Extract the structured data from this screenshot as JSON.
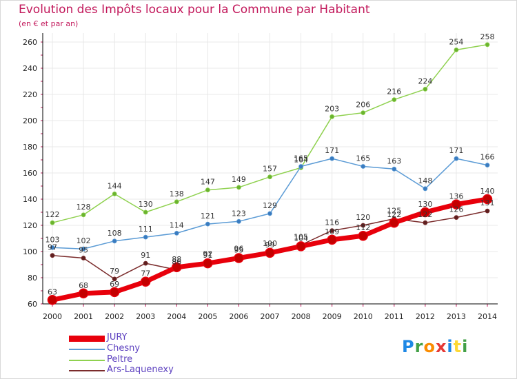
{
  "title": "Evolution des Impôts locaux pour la Commune par Habitant",
  "subtitle": "(en € et par an)",
  "logo": {
    "letters": [
      "P",
      "r",
      "o",
      "x",
      "i",
      "t",
      "i"
    ],
    "colors": [
      "#1e88e5",
      "#43a047",
      "#fb8c00",
      "#e53935",
      "#1e88e5",
      "#fdd835",
      "#43a047"
    ]
  },
  "colors": {
    "background": "#ffffff",
    "axis": "#000000",
    "grid": "#e8e8e8",
    "tick_marks": "#c2185b",
    "title": "#c2185b"
  },
  "chart_data": {
    "type": "line",
    "title": "Evolution des Impôts locaux pour la Commune par Habitant",
    "subtitle": "(en € et par an)",
    "x": [
      2000,
      2001,
      2002,
      2003,
      2004,
      2005,
      2006,
      2007,
      2008,
      2009,
      2010,
      2011,
      2012,
      2013,
      2014
    ],
    "ylim": [
      60,
      260
    ],
    "yticks": [
      60,
      80,
      100,
      120,
      140,
      160,
      180,
      200,
      220,
      240,
      260
    ],
    "grid": true,
    "legend_position": "bottom-left",
    "series": [
      {
        "name": "JURY",
        "color": "#e8000b",
        "marker_color": "#c40000",
        "values": [
          63,
          68,
          69,
          77,
          88,
          91,
          95,
          99,
          104,
          109,
          112,
          122,
          130,
          136,
          140
        ],
        "labels": [
          "63",
          "68",
          "69",
          "77",
          "88",
          "91",
          "95",
          "99",
          "104",
          "109",
          "112",
          "122",
          "130",
          "136",
          "140"
        ]
      },
      {
        "name": "Chesny",
        "color": "#5b9bd5",
        "marker_color": "#3a7bbf",
        "values": [
          103,
          102,
          108,
          111,
          114,
          121,
          123,
          129,
          165,
          171,
          165,
          163,
          148,
          171,
          166
        ],
        "labels": [
          "103",
          "102",
          "108",
          "111",
          "114",
          "121",
          "123",
          "129",
          "165",
          "171",
          "165",
          "163",
          "148",
          "171",
          "166"
        ]
      },
      {
        "name": "Peltre",
        "color": "#8fd14f",
        "marker_color": "#6ab32f",
        "values": [
          122,
          128,
          144,
          130,
          138,
          147,
          149,
          157,
          164,
          203,
          206,
          216,
          224,
          254,
          258
        ],
        "labels": [
          "122",
          "128",
          "144",
          "130",
          "138",
          "147",
          "149",
          "157",
          "164",
          "203",
          "206",
          "216",
          "224",
          "254",
          "258"
        ]
      },
      {
        "name": "Ars-Laquenexy",
        "color": "#7b2c2c",
        "marker_color": "#5e1f1f",
        "values": [
          97,
          95,
          79,
          91,
          86,
          92,
          96,
          100,
          105,
          116,
          120,
          125,
          122,
          126,
          131
        ],
        "labels": [
          "97",
          "95",
          "79",
          "91",
          "86",
          "92",
          "96",
          "100",
          "105",
          "116",
          "120",
          "125",
          "122",
          "126",
          "131"
        ]
      }
    ]
  }
}
